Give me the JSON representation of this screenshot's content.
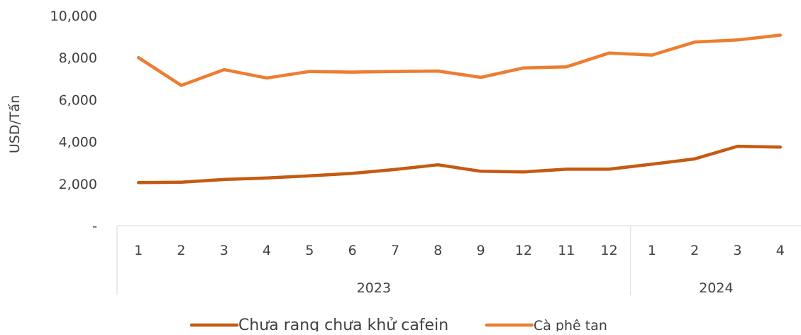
{
  "chart_data": {
    "type": "line",
    "title": "",
    "ylabel": "USD/Tấn",
    "xlabel": "",
    "ylim": [
      0,
      10000
    ],
    "yticks": [
      {
        "value": 0,
        "label": "-"
      },
      {
        "value": 2000,
        "label": "2,000"
      },
      {
        "value": 4000,
        "label": "4,000"
      },
      {
        "value": 6000,
        "label": "6,000"
      },
      {
        "value": 8000,
        "label": "8,000"
      },
      {
        "value": 10000,
        "label": "10,000"
      }
    ],
    "categories": [
      "1",
      "2",
      "3",
      "4",
      "5",
      "6",
      "7",
      "8",
      "9",
      "12",
      "11",
      "12",
      "1",
      "2",
      "3",
      "4"
    ],
    "groups": [
      {
        "label": "2023",
        "count": 12
      },
      {
        "label": "2024",
        "count": 4
      }
    ],
    "grid": false,
    "legend_position": "bottom",
    "series": [
      {
        "name": "Chưa rang chưa khử cafein",
        "color": "#C55A11",
        "values": [
          2050,
          2070,
          2200,
          2270,
          2370,
          2490,
          2680,
          2900,
          2590,
          2560,
          2690,
          2690,
          2930,
          3180,
          3780,
          3740
        ]
      },
      {
        "name": "Cà phê tan",
        "color": "#ED7D31",
        "values": [
          8000,
          6680,
          7430,
          7030,
          7340,
          7310,
          7340,
          7360,
          7060,
          7510,
          7560,
          8220,
          8120,
          8740,
          8840,
          9070
        ]
      }
    ]
  }
}
